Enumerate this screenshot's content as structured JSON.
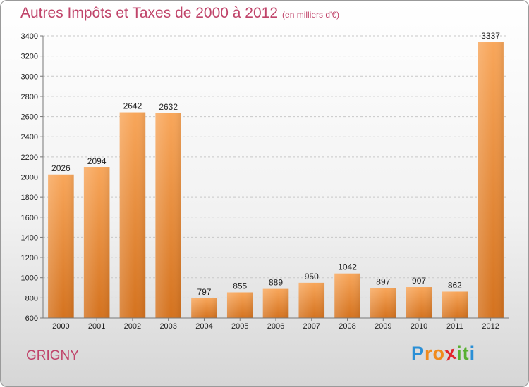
{
  "chart_data": {
    "type": "bar",
    "title": "Autres Impôts et Taxes de 2000 à 2012",
    "subtitle": "(en milliers d'€)",
    "categories": [
      "2000",
      "2001",
      "2002",
      "2003",
      "2004",
      "2005",
      "2006",
      "2007",
      "2008",
      "2009",
      "2010",
      "2011",
      "2012"
    ],
    "values": [
      2026,
      2094,
      2642,
      2632,
      797,
      855,
      889,
      950,
      1042,
      897,
      907,
      862,
      3337
    ],
    "ylim": [
      600,
      3400
    ],
    "yticks": [
      600,
      800,
      1000,
      1200,
      1400,
      1600,
      1800,
      2000,
      2200,
      2400,
      2600,
      2800,
      3000,
      3200,
      3400
    ],
    "grid": true,
    "legend": "none",
    "bar_color_top": "#f8a65a",
    "bar_color_bottom": "#d4721e"
  },
  "footer": {
    "city": "GRIGNY",
    "logo_letters": [
      "P",
      "r",
      "o",
      "x",
      "i",
      "t",
      "i"
    ],
    "logo_colors": [
      "#2a8fd6",
      "#f08a1c",
      "#f08a1c",
      "#e3262c",
      "#58b030",
      "#58b030",
      "#2a8fd6"
    ]
  }
}
